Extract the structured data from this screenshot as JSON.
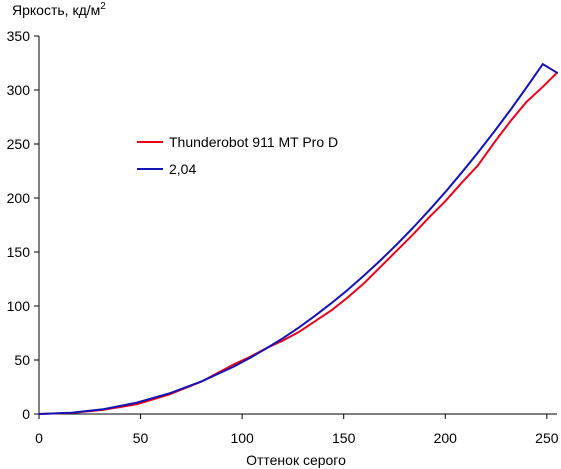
{
  "chart_data": {
    "type": "line",
    "ylabel": "Яркость, кд/м",
    "ylabel_superscript": "2",
    "xlabel": "Оттенок серого",
    "xlim": [
      0,
      255
    ],
    "ylim": [
      0,
      350
    ],
    "xticks": [
      0,
      50,
      100,
      150,
      200,
      250
    ],
    "yticks": [
      0,
      50,
      100,
      150,
      200,
      250,
      300,
      350
    ],
    "grid": false,
    "legend_position": "center-left",
    "series": [
      {
        "name": "Thunderobot 911 MT Pro D",
        "color": "#e8001c",
        "x": [
          0,
          16,
          32,
          48,
          64,
          80,
          96,
          104,
          112,
          120,
          128,
          136,
          144,
          152,
          160,
          168,
          176,
          184,
          192,
          200,
          208,
          216,
          224,
          232,
          240,
          248,
          255
        ],
        "y": [
          0,
          1,
          4,
          9,
          18,
          30,
          46,
          53,
          61,
          68,
          76,
          86,
          96,
          108,
          121,
          136,
          151,
          166,
          182,
          197,
          214,
          230,
          251,
          271,
          289,
          303,
          316
        ]
      },
      {
        "name": "2,04",
        "color": "#1414b4",
        "x": [
          0,
          16,
          32,
          48,
          64,
          80,
          96,
          104,
          112,
          120,
          128,
          136,
          144,
          152,
          160,
          168,
          176,
          184,
          192,
          200,
          208,
          216,
          224,
          232,
          240,
          248,
          255
        ],
        "y": [
          0,
          1.1,
          4.5,
          10.5,
          19,
          30.2,
          44,
          52,
          60.8,
          70.1,
          80.2,
          91.1,
          102.7,
          115,
          128.2,
          142.1,
          156.8,
          172.2,
          188.5,
          205.5,
          223.3,
          241.9,
          261.2,
          281.4,
          302.3,
          324,
          316
        ]
      }
    ]
  }
}
